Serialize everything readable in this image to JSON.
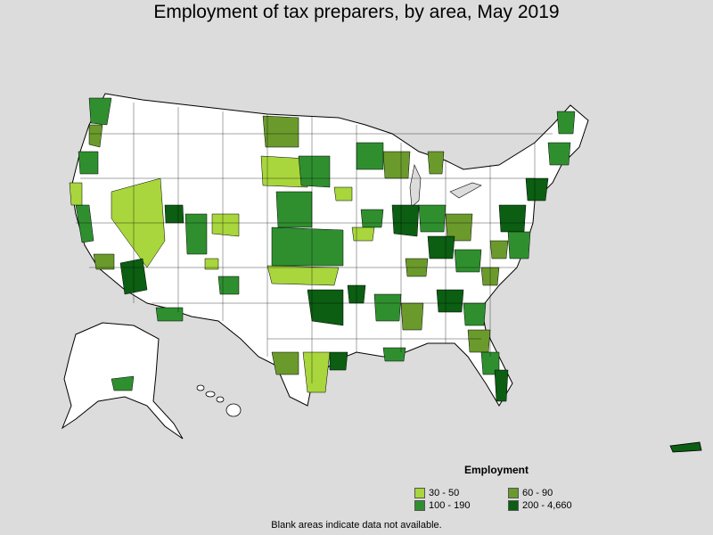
{
  "title": "Employment of tax preparers, by area, May 2019",
  "legend": {
    "title": "Employment",
    "items": [
      {
        "label": "30 - 50",
        "color": "#a8d63c"
      },
      {
        "label": "60 - 90",
        "color": "#6b9a2c"
      },
      {
        "label": "100 - 190",
        "color": "#2f8f2f"
      },
      {
        "label": "200 - 4,660",
        "color": "#0b5e12"
      }
    ]
  },
  "note": "Blank areas indicate data not available.",
  "colors": {
    "background": "#dcdcdc",
    "land": "#ffffff",
    "border": "#000000"
  }
}
